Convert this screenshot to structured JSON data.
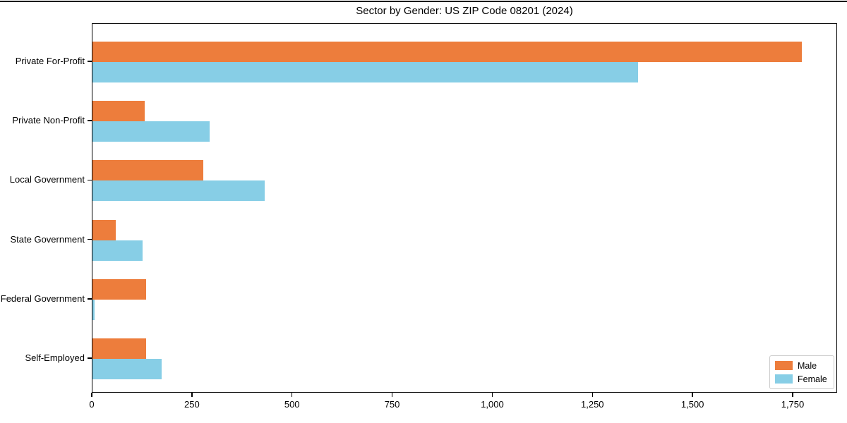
{
  "chart_data": {
    "type": "bar",
    "orientation": "horizontal",
    "title": "Sector by Gender: US ZIP Code 08201 (2024)",
    "categories": [
      "Private For-Profit",
      "Private Non-Profit",
      "Local Government",
      "State Government",
      "Federal Government",
      "Self-Employed"
    ],
    "series": [
      {
        "name": "Male",
        "color": "#ED7D3C",
        "values": [
          1772,
          130,
          277,
          58,
          134,
          134
        ]
      },
      {
        "name": "Female",
        "color": "#87CEE6",
        "values": [
          1362,
          293,
          430,
          125,
          5,
          172
        ]
      }
    ],
    "xlabel": "",
    "ylabel": "",
    "xlim": [
      0,
      1861
    ],
    "xticks": [
      0,
      250,
      500,
      750,
      1000,
      1250,
      1500,
      1750
    ],
    "xtick_labels": [
      "0",
      "250",
      "500",
      "750",
      "1,000",
      "1,250",
      "1,500",
      "1,750"
    ],
    "grid": false,
    "legend_position": "lower right"
  },
  "colors": {
    "spine": "#000000",
    "background": "#ffffff",
    "legend_border": "#cccccc"
  }
}
